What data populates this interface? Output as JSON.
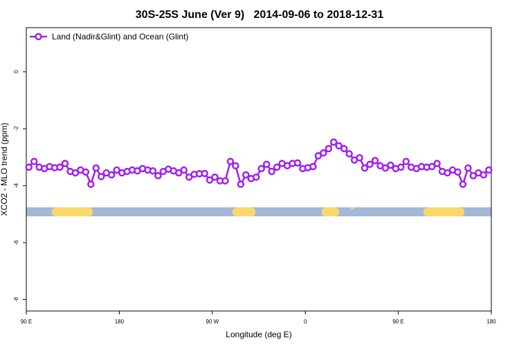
{
  "chart_data": {
    "type": "line",
    "title": "30S-25S June (Ver 9)   2014-09-06 to 2018-12-31",
    "xlabel": "Longitude (deg E)",
    "ylabel": "XCO2 - MLO trend (ppm)",
    "xlim": [
      90,
      540
    ],
    "ylim": [
      -8.4,
      1.55
    ],
    "xticks": [
      {
        "value": 90,
        "label": "90 E"
      },
      180,
      {
        "value": 270,
        "label": "90 W"
      },
      {
        "value": 360,
        "label": "0"
      },
      {
        "value": 450,
        "label": "90 E"
      },
      {
        "value": 540,
        "label": "180"
      }
    ],
    "yticks": [
      0,
      -2,
      -4,
      -6,
      -8
    ],
    "legend": "top-left",
    "x": [
      92.5,
      97.5,
      102.5,
      107.5,
      112.5,
      117.5,
      122.5,
      127.5,
      132.5,
      137.5,
      142.5,
      147.5,
      152.5,
      157.5,
      162.5,
      167.5,
      172.5,
      177.5,
      182.5,
      187.5,
      192.5,
      197.5,
      202.5,
      207.5,
      212.5,
      217.5,
      222.5,
      227.5,
      232.5,
      237.5,
      242.5,
      247.5,
      252.5,
      257.5,
      262.5,
      267.5,
      272.5,
      277.5,
      282.5,
      287.5,
      292.5,
      297.5,
      302.5,
      307.5,
      312.5,
      317.5,
      322.5,
      327.5,
      332.5,
      337.5,
      342.5,
      347.5,
      352.5,
      357.5,
      362.5,
      367.5,
      372.5,
      377.5,
      382.5,
      387.5,
      392.5,
      397.5,
      402.5,
      407.5,
      412.5,
      417.5,
      422.5,
      427.5,
      432.5,
      437.5,
      442.5,
      447.5,
      452.5,
      457.5,
      462.5,
      467.5,
      472.5,
      477.5,
      482.5,
      487.5,
      492.5,
      497.5,
      502.5,
      507.5,
      512.5,
      517.5,
      522.5,
      527.5,
      532.5,
      537.5
    ],
    "series": [
      {
        "name": "Land (Nadir&Glint) and Ocean (Glint)",
        "color": "#a020f0",
        "values": [
          -3.35,
          -3.15,
          -3.35,
          -3.4,
          -3.33,
          -3.37,
          -3.35,
          -3.22,
          -3.5,
          -3.55,
          -3.45,
          -3.52,
          -3.95,
          -3.38,
          -3.68,
          -3.55,
          -3.62,
          -3.45,
          -3.55,
          -3.5,
          -3.45,
          -3.48,
          -3.4,
          -3.45,
          -3.48,
          -3.65,
          -3.5,
          -3.42,
          -3.48,
          -3.55,
          -3.45,
          -3.7,
          -3.6,
          -3.58,
          -3.57,
          -3.8,
          -3.7,
          -3.83,
          -3.83,
          -3.15,
          -3.3,
          -3.95,
          -3.62,
          -3.75,
          -3.7,
          -3.4,
          -3.25,
          -3.5,
          -3.35,
          -3.22,
          -3.3,
          -3.22,
          -3.2,
          -3.4,
          -3.37,
          -3.33,
          -2.95,
          -2.85,
          -2.7,
          -2.47,
          -2.6,
          -2.7,
          -2.88,
          -3.1,
          -3.02,
          -3.38,
          -3.25,
          -3.12,
          -3.3,
          -3.38,
          -3.28,
          -3.4,
          -3.35,
          -3.15,
          -3.35,
          -3.4,
          -3.33,
          -3.35,
          -3.33,
          -3.22,
          -3.5,
          -3.55,
          -3.45,
          -3.52,
          -3.95,
          -3.38,
          -3.65,
          -3.55,
          -3.62,
          -3.45
        ]
      }
    ]
  }
}
